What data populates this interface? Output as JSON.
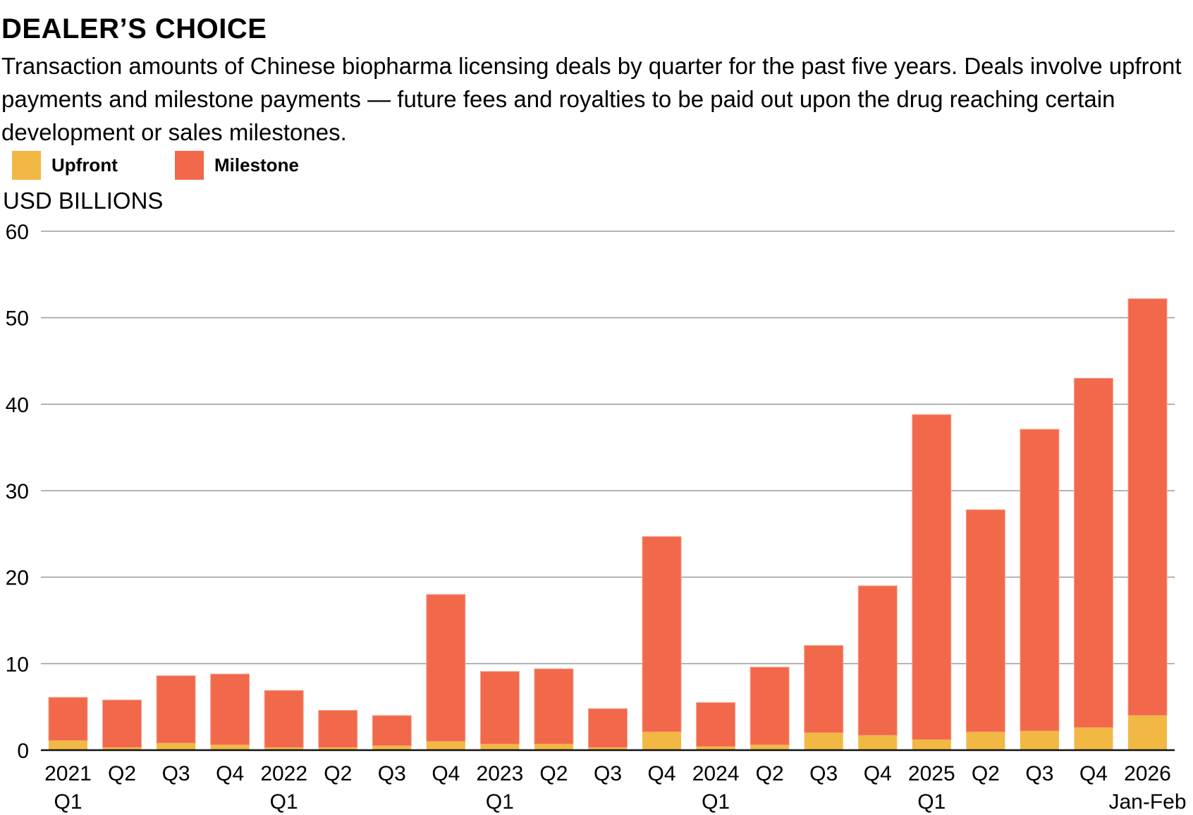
{
  "header": {
    "title": "DEALER’S CHOICE",
    "subtitle": "Transaction amounts of Chinese biopharma licensing deals by quarter for the past five years. Deals involve upfront payments and milestone payments — future fees and royalties to be paid out upon the drug reaching certain development or sales milestones."
  },
  "legend": {
    "items": [
      {
        "label": "Upfront",
        "color": "#F2B844"
      },
      {
        "label": "Milestone",
        "color": "#F2684A"
      }
    ]
  },
  "colors": {
    "upfront": "#F2B844",
    "milestone": "#F2684A",
    "gridline": "#9a9a9a",
    "baseline": "#111111"
  },
  "chart_data": {
    "type": "bar",
    "stacked": true,
    "title": "DEALER’S CHOICE",
    "ylabel": "USD BILLIONS",
    "xlabel": "",
    "ylim": [
      0,
      60
    ],
    "yticks": [
      0,
      10,
      20,
      30,
      40,
      50,
      60
    ],
    "grid": true,
    "legend_position": "top-left",
    "categories": [
      [
        "2021",
        "Q1"
      ],
      [
        "Q2"
      ],
      [
        "Q3"
      ],
      [
        "Q4"
      ],
      [
        "2022",
        "Q1"
      ],
      [
        "Q2"
      ],
      [
        "Q3"
      ],
      [
        "Q4"
      ],
      [
        "2023",
        "Q1"
      ],
      [
        "Q2"
      ],
      [
        "Q3"
      ],
      [
        "Q4"
      ],
      [
        "2024",
        "Q1"
      ],
      [
        "Q2"
      ],
      [
        "Q3"
      ],
      [
        "Q4"
      ],
      [
        "2025",
        "Q1"
      ],
      [
        "Q2"
      ],
      [
        "Q3"
      ],
      [
        "Q4"
      ],
      [
        "2026",
        "Jan-Feb"
      ]
    ],
    "series": [
      {
        "name": "Upfront",
        "color": "#F2B844",
        "values": [
          1.1,
          0.3,
          0.8,
          0.6,
          0.3,
          0.3,
          0.5,
          1.0,
          0.7,
          0.7,
          0.3,
          2.1,
          0.4,
          0.6,
          2.0,
          1.7,
          1.2,
          2.1,
          2.2,
          2.6,
          4.0
        ]
      },
      {
        "name": "Milestone",
        "color": "#F2684A",
        "values": [
          5.0,
          5.5,
          7.8,
          8.2,
          6.6,
          4.3,
          3.5,
          17.0,
          8.4,
          8.7,
          4.5,
          22.6,
          5.1,
          9.0,
          10.1,
          17.3,
          37.6,
          25.7,
          34.9,
          40.4,
          48.2
        ]
      }
    ],
    "totals": [
      6.1,
      5.8,
      8.6,
      8.8,
      6.9,
      4.6,
      4.0,
      18.0,
      9.1,
      9.4,
      4.8,
      24.7,
      5.5,
      9.6,
      12.1,
      19.0,
      38.8,
      27.8,
      37.1,
      43.0,
      52.2
    ]
  }
}
